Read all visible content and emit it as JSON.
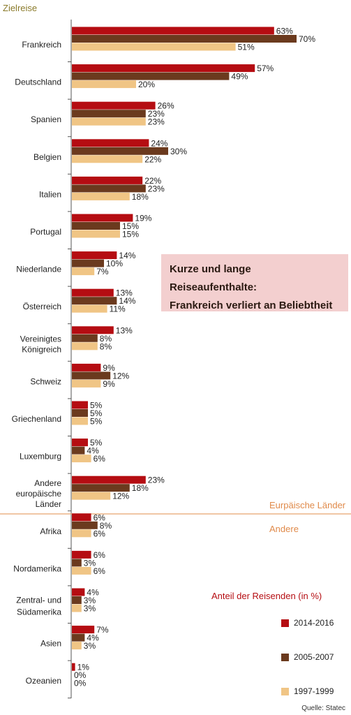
{
  "chart_data": {
    "type": "bar",
    "orientation": "horizontal",
    "axis_title": "Zielreise",
    "callout": [
      "Kurze und lange Reiseaufenthalte:",
      "Frankreich verliert an Beliebtheit"
    ],
    "xlim": [
      0,
      75
    ],
    "groups": [
      "Eurpäische Länder",
      "Andere"
    ],
    "legend_title": "Anteil der Reisenden (in %)",
    "source": "Quelle: Statec",
    "colors": {
      "2014-2016": "#b50d12",
      "2005-2007": "#6b3a1e",
      "1997-1999": "#f0c585"
    },
    "categories": [
      {
        "label": [
          "Frankreich"
        ],
        "group": 0
      },
      {
        "label": [
          "Deutschland"
        ],
        "group": 0
      },
      {
        "label": [
          "Spanien"
        ],
        "group": 0
      },
      {
        "label": [
          "Belgien"
        ],
        "group": 0
      },
      {
        "label": [
          "Italien"
        ],
        "group": 0
      },
      {
        "label": [
          "Portugal"
        ],
        "group": 0
      },
      {
        "label": [
          "Niederlande"
        ],
        "group": 0
      },
      {
        "label": [
          "Österreich"
        ],
        "group": 0
      },
      {
        "label": [
          "Vereinigtes",
          "Königreich"
        ],
        "group": 0
      },
      {
        "label": [
          "Schweiz"
        ],
        "group": 0
      },
      {
        "label": [
          "Griechenland"
        ],
        "group": 0
      },
      {
        "label": [
          "Luxemburg"
        ],
        "group": 0
      },
      {
        "label": [
          "Andere",
          "europäische",
          "Länder"
        ],
        "group": 0
      },
      {
        "label": [
          "Afrika"
        ],
        "group": 1
      },
      {
        "label": [
          "Nordamerika"
        ],
        "group": 1
      },
      {
        "label": [
          "Zentral- und",
          "Südamerika"
        ],
        "group": 1
      },
      {
        "label": [
          "Asien"
        ],
        "group": 1
      },
      {
        "label": [
          "Ozeanien"
        ],
        "group": 1
      }
    ],
    "series": [
      {
        "name": "2014-2016",
        "values": [
          63,
          57,
          26,
          24,
          22,
          19,
          14,
          13,
          13,
          9,
          5,
          5,
          23,
          6,
          6,
          4,
          7,
          1
        ]
      },
      {
        "name": "2005-2007",
        "values": [
          70,
          49,
          23,
          30,
          23,
          15,
          10,
          14,
          8,
          12,
          5,
          4,
          18,
          8,
          3,
          3,
          4,
          0
        ]
      },
      {
        "name": "1997-1999",
        "values": [
          51,
          20,
          23,
          22,
          18,
          15,
          7,
          11,
          8,
          9,
          5,
          6,
          12,
          6,
          6,
          3,
          3,
          0
        ]
      }
    ]
  }
}
